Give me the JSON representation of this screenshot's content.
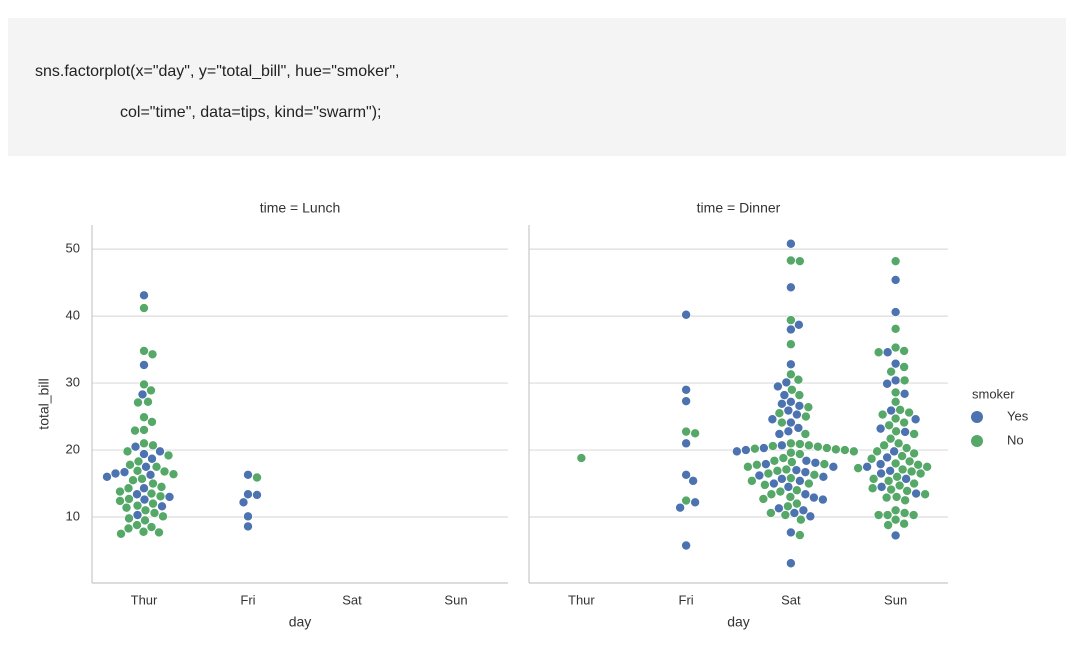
{
  "code": [
    "sns.factorplot(x=\"day\", y=\"total_bill\", hue=\"smoker\",",
    "col=\"time\", data=tips, kind=\"swarm\");"
  ],
  "chart_data": [
    {
      "type": "swarm",
      "title": "time = Lunch",
      "x_label": "day",
      "y_label": "total_bill",
      "categories": [
        "Thur",
        "Fri",
        "Sat",
        "Sun"
      ],
      "ylim": [
        0.15,
        53.6
      ],
      "yticks": [
        10,
        20,
        30,
        40,
        50
      ],
      "grid": true,
      "series": [
        {
          "name": "Yes",
          "color": "#4c72b0",
          "values": [
            [
              43.1,
              32.7,
              28.3,
              20.5,
              19.8,
              19.4,
              18.7,
              17.5,
              16.7,
              16.5,
              16.3,
              16.0,
              14.3,
              13.4,
              13.0,
              12.6,
              11.6,
              10.3
            ],
            [
              16.3,
              13.4,
              13.3,
              12.2,
              10.1,
              8.6
            ],
            [],
            []
          ]
        },
        {
          "name": "No",
          "color": "#55a868",
          "values": [
            [
              41.2,
              34.8,
              34.3,
              29.8,
              28.9,
              27.2,
              27.1,
              24.9,
              24.2,
              23.0,
              22.9,
              21.0,
              20.7,
              19.8,
              19.2,
              18.3,
              17.8,
              17.5,
              16.9,
              16.8,
              16.4,
              15.7,
              15.5,
              15.0,
              14.5,
              14.3,
              13.8,
              13.5,
              13.1,
              12.7,
              12.4,
              12.0,
              11.7,
              11.4,
              11.0,
              10.6,
              10.1,
              9.8,
              9.5,
              8.8,
              8.5,
              8.3,
              7.8,
              7.7,
              7.5
            ],
            [
              15.9
            ],
            [],
            []
          ]
        }
      ]
    },
    {
      "type": "swarm",
      "title": "time = Dinner",
      "x_label": "day",
      "categories": [
        "Thur",
        "Fri",
        "Sat",
        "Sun"
      ],
      "sharey": true,
      "grid": true,
      "legend": "right",
      "legend_title": "smoker",
      "series": [
        {
          "name": "Yes",
          "color": "#4c72b0",
          "values": [
            [],
            [
              40.2,
              29.0,
              27.3,
              21.0,
              16.3,
              15.4,
              12.2,
              11.4,
              5.75
            ],
            [
              50.8,
              44.3,
              38.7,
              38.0,
              32.8,
              30.1,
              29.5,
              28.2,
              27.2,
              26.9,
              26.6,
              25.9,
              25.3,
              24.6,
              24.1,
              23.3,
              22.8,
              22.4,
              20.7,
              20.3,
              20.0,
              19.8,
              18.4,
              18.1,
              17.9,
              17.5,
              17.0,
              16.7,
              16.2,
              16.0,
              15.7,
              15.4,
              15.0,
              14.5,
              13.4,
              12.9,
              12.6,
              11.3,
              11.0,
              10.6,
              10.1,
              7.7,
              3.1
            ],
            [
              45.4,
              40.6,
              34.6,
              32.9,
              30.4,
              29.9,
              28.4,
              25.9,
              24.6,
              23.2,
              22.7,
              19.8,
              18.9,
              17.9,
              17.5,
              16.9,
              16.5,
              15.7,
              14.5,
              13.5,
              7.25
            ]
          ]
        },
        {
          "name": "No",
          "color": "#55a868",
          "values": [
            [
              18.8
            ],
            [
              22.75,
              22.5,
              12.46
            ],
            [
              48.3,
              48.2,
              39.4,
              35.8,
              31.3,
              30.5,
              29.0,
              28.2,
              26.4,
              25.5,
              25.0,
              24.1,
              22.4,
              21.0,
              20.9,
              20.7,
              20.6,
              20.5,
              20.3,
              20.2,
              20.1,
              20.0,
              19.8,
              19.6,
              19.4,
              18.8,
              18.4,
              18.2,
              17.9,
              17.8,
              17.5,
              17.1,
              16.9,
              16.5,
              16.3,
              15.8,
              15.4,
              15.0,
              14.8,
              14.0,
              13.8,
              13.4,
              13.0,
              12.7,
              12.0,
              11.6,
              10.6,
              10.3,
              9.6,
              7.3
            ],
            [
              48.2,
              38.1,
              35.3,
              34.8,
              34.6,
              32.4,
              31.7,
              30.4,
              28.6,
              27.2,
              26.0,
              25.6,
              25.3,
              24.7,
              24.1,
              23.7,
              22.8,
              22.4,
              21.7,
              21.0,
              20.7,
              20.3,
              19.8,
              19.5,
              19.1,
              18.7,
              18.3,
              18.0,
              17.8,
              17.5,
              17.3,
              17.1,
              16.8,
              16.5,
              16.0,
              15.7,
              15.4,
              15.0,
              14.7,
              14.3,
              14.1,
              13.9,
              13.4,
              13.0,
              12.9,
              12.5,
              11.0,
              10.6,
              10.3,
              10.3,
              10.3,
              9.6,
              9.0,
              8.8
            ]
          ]
        }
      ]
    }
  ]
}
